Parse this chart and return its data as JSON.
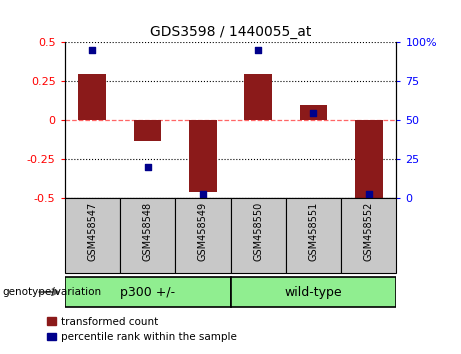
{
  "title": "GDS3598 / 1440055_at",
  "samples": [
    "GSM458547",
    "GSM458548",
    "GSM458549",
    "GSM458550",
    "GSM458551",
    "GSM458552"
  ],
  "red_values": [
    0.3,
    -0.13,
    -0.46,
    0.3,
    0.1,
    -0.5
  ],
  "blue_percentiles": [
    95,
    20,
    3,
    95,
    55,
    3
  ],
  "ylim_left": [
    -0.5,
    0.5
  ],
  "ylim_right": [
    0,
    100
  ],
  "yticks_left": [
    -0.5,
    -0.25,
    0,
    0.25,
    0.5
  ],
  "ytick_labels_left": [
    "-0.5",
    "-0.25",
    "0",
    "0.25",
    "0.5"
  ],
  "yticks_right": [
    0,
    25,
    50,
    75,
    100
  ],
  "ytick_labels_right": [
    "0",
    "25",
    "50",
    "75",
    "100%"
  ],
  "group1_label": "p300 +/-",
  "group1_indices": [
    0,
    1,
    2
  ],
  "group2_label": "wild-type",
  "group2_indices": [
    3,
    4,
    5
  ],
  "genotype_label": "genotype/variation",
  "legend_red": "transformed count",
  "legend_blue": "percentile rank within the sample",
  "bar_color": "#8B1A1A",
  "dot_color": "#00008B",
  "group1_color": "#90EE90",
  "group2_color": "#90EE90",
  "label_bg_color": "#C8C8C8",
  "zero_line_color": "#FF6666",
  "bar_width": 0.5
}
